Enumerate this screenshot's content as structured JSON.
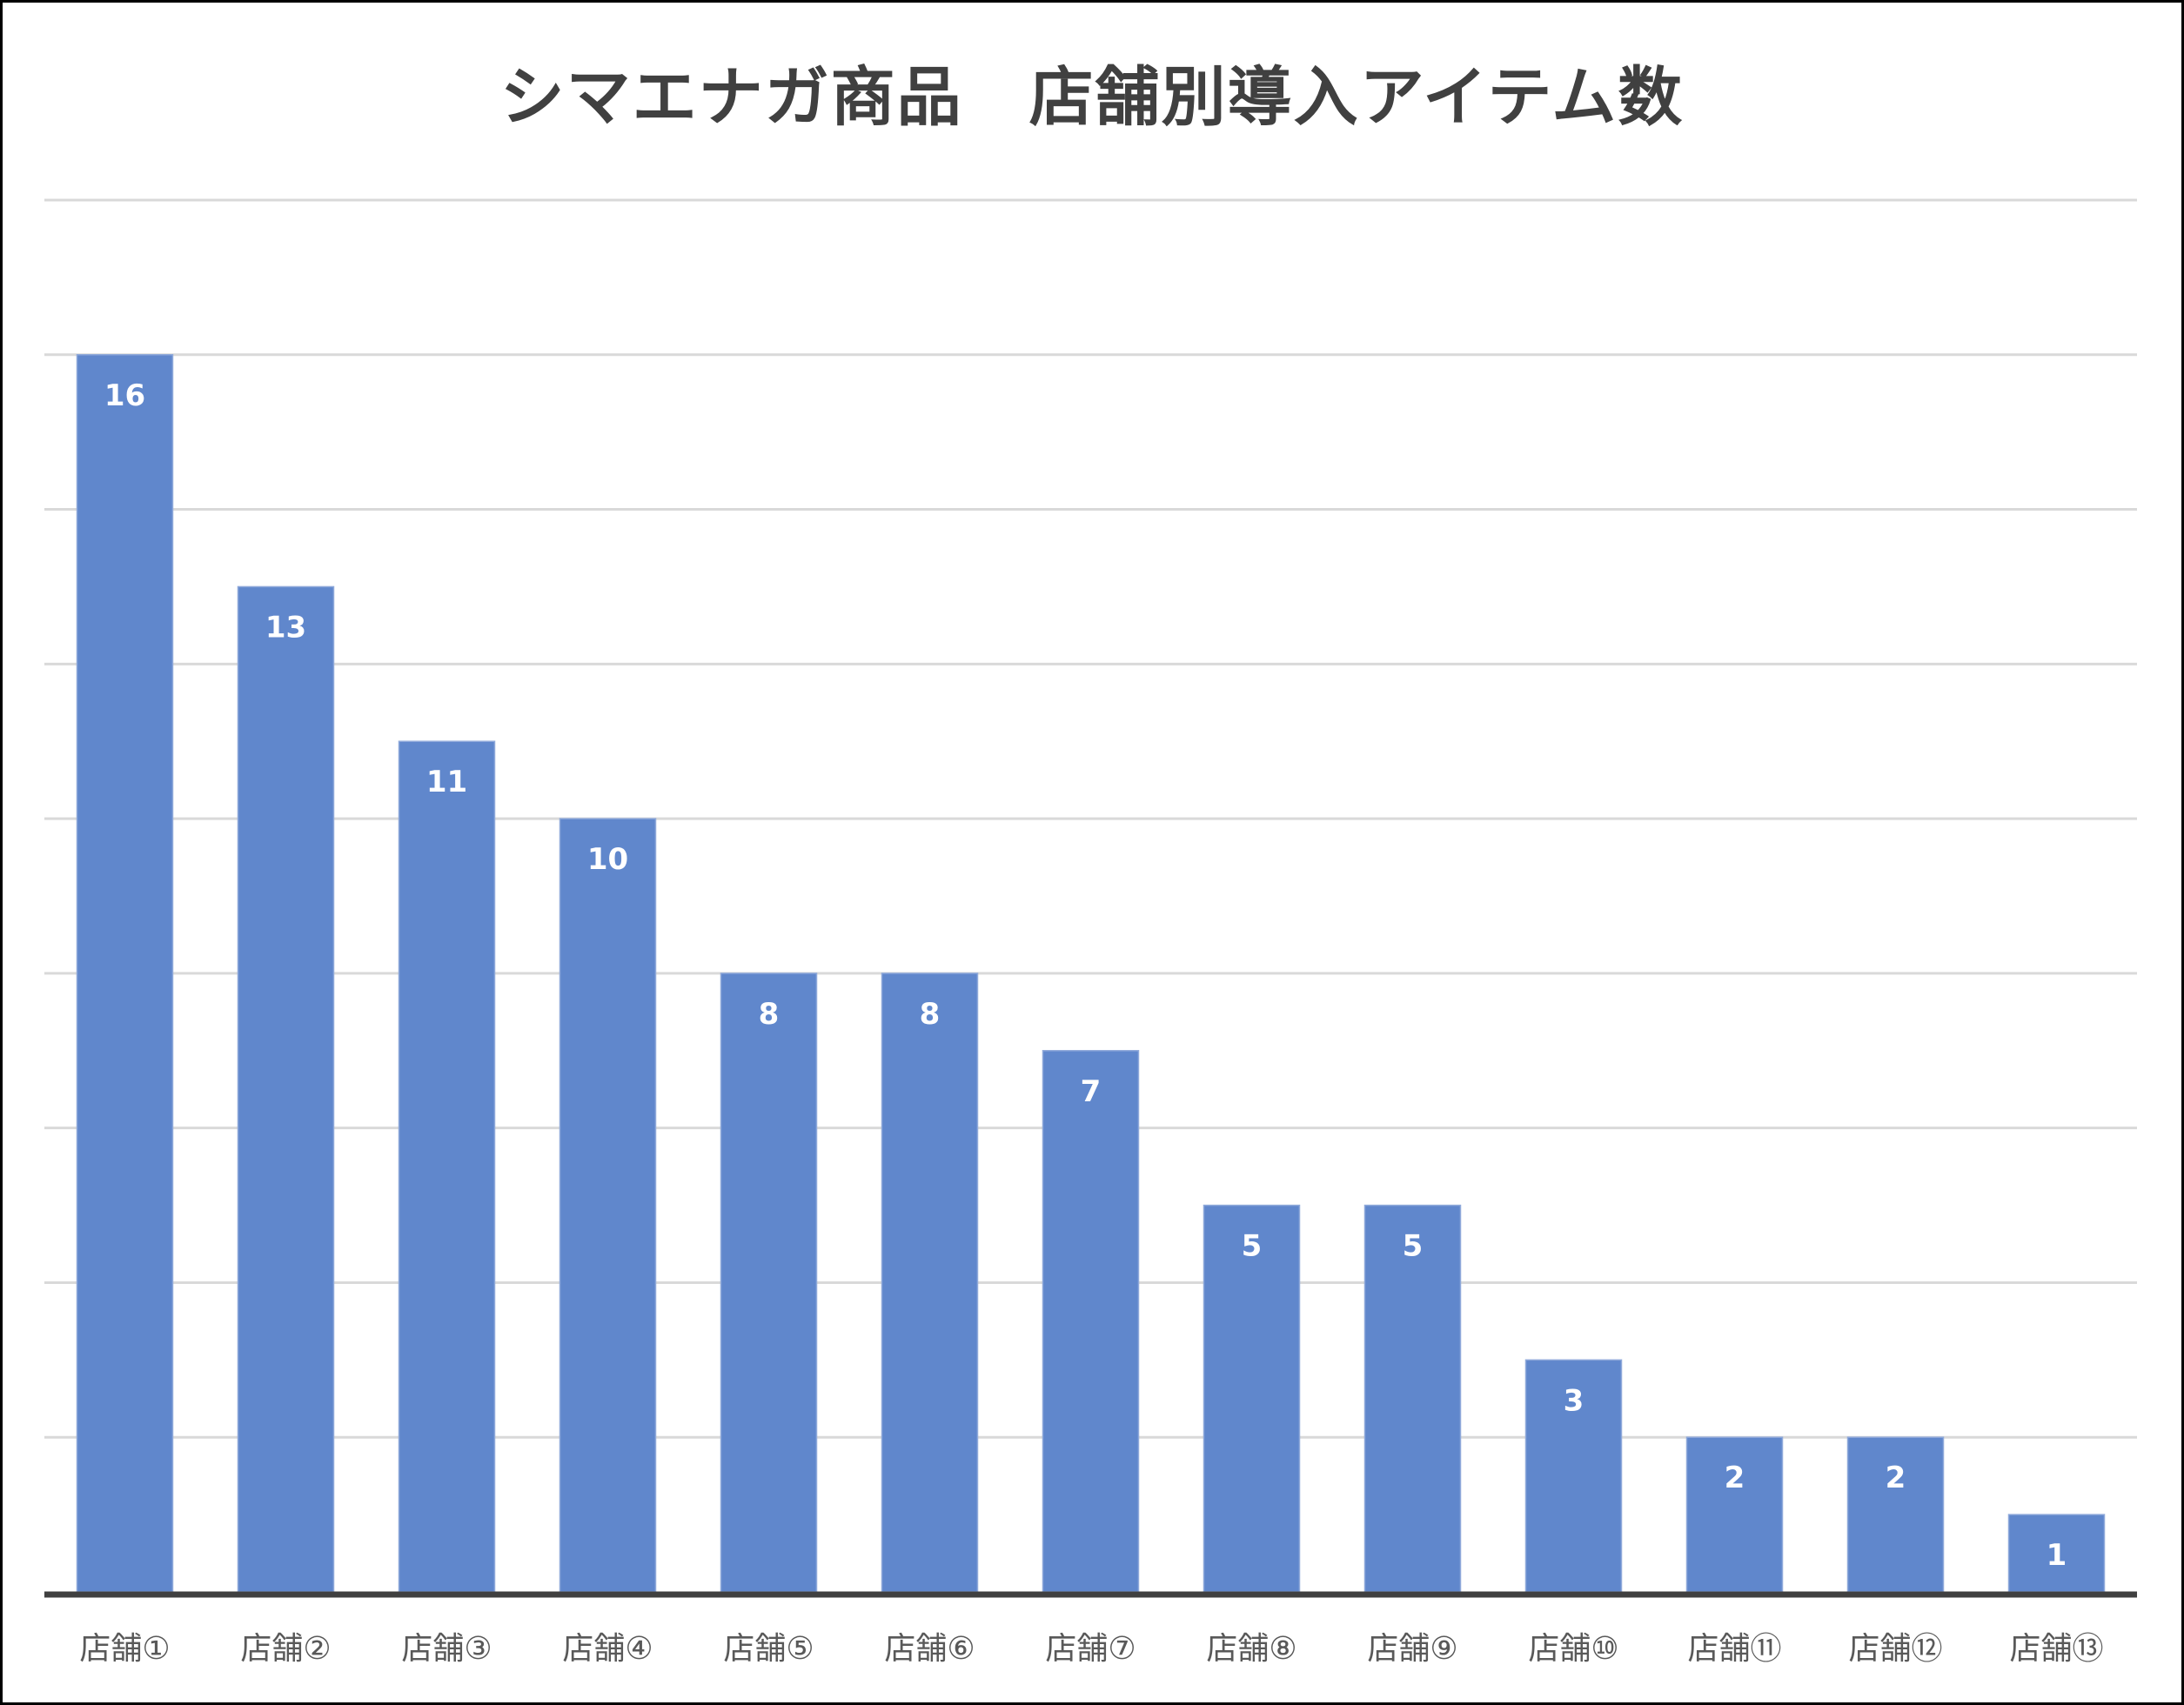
{
  "chart_data": {
    "type": "bar",
    "title": "シマエナガ商品　店舗別導入アイテム数",
    "categories": [
      "店舗①",
      "店舗②",
      "店舗③",
      "店舗④",
      "店舗⑤",
      "店舗⑥",
      "店舗⑦",
      "店舗⑧",
      "店舗⑨",
      "店舗⑩",
      "店舗⑪",
      "店舗⑫",
      "店舗⑬"
    ],
    "values": [
      16,
      13,
      11,
      10,
      8,
      8,
      7,
      5,
      5,
      3,
      2,
      2,
      1
    ],
    "xlabel": "",
    "ylabel": "",
    "ylim": [
      0,
      18
    ],
    "grid_step": 2,
    "grid": true,
    "y_tick_labels_shown": false,
    "data_labels": "inside-end",
    "legend": "none",
    "colors": {
      "bar": "#6087CC",
      "grid": "#D9D9D9",
      "axis": "#404040",
      "title": "#404040",
      "label": "#595959"
    }
  }
}
